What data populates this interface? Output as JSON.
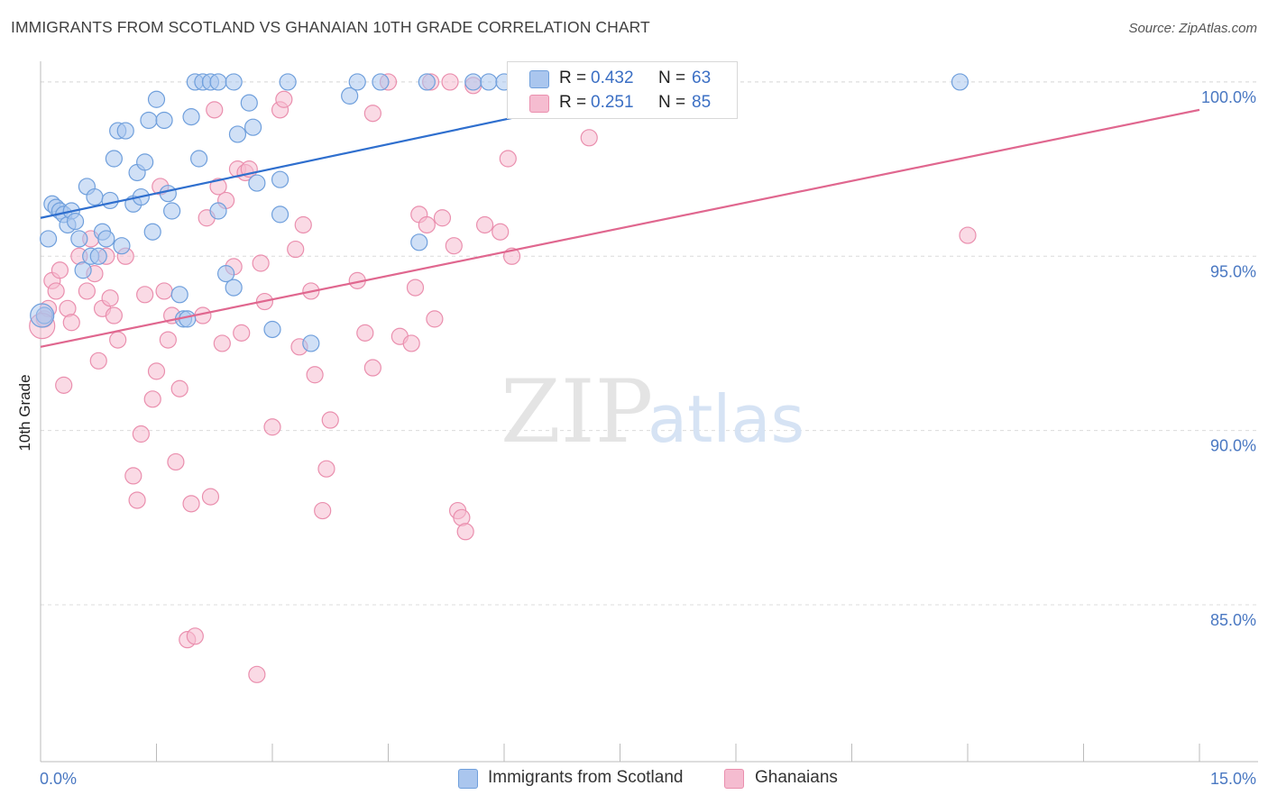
{
  "header": {
    "title": "IMMIGRANTS FROM SCOTLAND VS GHANAIAN 10TH GRADE CORRELATION CHART",
    "source": "Source: ZipAtlas.com"
  },
  "watermark": {
    "zip": "ZIP",
    "atlas": "atlas"
  },
  "legend_top": {
    "rows": [
      {
        "r_label": "R =",
        "r_value": "0.432",
        "n_label": "N =",
        "n_value": "63"
      },
      {
        "r_label": "R =",
        "r_value": "0.251",
        "n_label": "N =",
        "n_value": "85"
      }
    ]
  },
  "legend_bottom": {
    "items": [
      {
        "label": "Immigrants from Scotland"
      },
      {
        "label": "Ghanaians"
      }
    ]
  },
  "colors": {
    "series1_fill": "#aac6ee",
    "series1_stroke": "#6f9fdc",
    "series1_line": "#2f6fce",
    "series2_fill": "#f5bcd0",
    "series2_stroke": "#ea8fae",
    "series2_line": "#e0678f",
    "tick_label": "#4a78c2",
    "grid": "#dcdcdc"
  },
  "chart_data": {
    "type": "scatter",
    "title": "IMMIGRANTS FROM SCOTLAND VS GHANAIAN 10TH GRADE CORRELATION CHART",
    "xlabel": "",
    "ylabel": "10th Grade",
    "xlim": [
      0,
      15
    ],
    "ylim": [
      80.5,
      100.8
    ],
    "x_tick_labels": [
      "0.0%",
      "15.0%"
    ],
    "y_ticks": [
      85,
      90,
      95,
      100
    ],
    "y_tick_labels": [
      "85.0%",
      "90.0%",
      "95.0%",
      "100.0%"
    ],
    "grid": true,
    "legend_position": "bottom",
    "series": [
      {
        "name": "Immigrants from Scotland",
        "r": 0.432,
        "n": 63,
        "trend": {
          "x": [
            0,
            8.3
          ],
          "y": [
            96.1,
            100.0
          ]
        },
        "points": [
          [
            0.1,
            95.5
          ],
          [
            0.15,
            96.5
          ],
          [
            0.2,
            96.4
          ],
          [
            0.25,
            96.3
          ],
          [
            0.3,
            96.2
          ],
          [
            0.35,
            95.9
          ],
          [
            0.4,
            96.3
          ],
          [
            0.45,
            96.0
          ],
          [
            0.5,
            95.5
          ],
          [
            0.55,
            94.6
          ],
          [
            0.6,
            97.0
          ],
          [
            0.65,
            95.0
          ],
          [
            0.7,
            96.7
          ],
          [
            0.75,
            95.0
          ],
          [
            0.8,
            95.7
          ],
          [
            0.85,
            95.5
          ],
          [
            0.9,
            96.6
          ],
          [
            0.95,
            97.8
          ],
          [
            1.0,
            98.6
          ],
          [
            1.05,
            95.3
          ],
          [
            1.1,
            98.6
          ],
          [
            1.2,
            96.5
          ],
          [
            1.25,
            97.4
          ],
          [
            1.3,
            96.7
          ],
          [
            1.35,
            97.7
          ],
          [
            1.4,
            98.9
          ],
          [
            1.45,
            95.7
          ],
          [
            1.5,
            99.5
          ],
          [
            1.6,
            98.9
          ],
          [
            1.65,
            96.8
          ],
          [
            1.7,
            96.3
          ],
          [
            1.8,
            93.9
          ],
          [
            1.85,
            93.2
          ],
          [
            1.9,
            93.2
          ],
          [
            1.95,
            99.0
          ],
          [
            2.0,
            100.0
          ],
          [
            2.05,
            97.8
          ],
          [
            2.1,
            100.0
          ],
          [
            2.2,
            100.0
          ],
          [
            2.3,
            96.3
          ],
          [
            2.3,
            100.0
          ],
          [
            2.4,
            94.5
          ],
          [
            2.5,
            100.0
          ],
          [
            2.5,
            94.1
          ],
          [
            2.55,
            98.5
          ],
          [
            2.7,
            99.4
          ],
          [
            2.75,
            98.7
          ],
          [
            2.8,
            97.1
          ],
          [
            3.0,
            92.9
          ],
          [
            3.1,
            97.2
          ],
          [
            3.1,
            96.2
          ],
          [
            3.2,
            100.0
          ],
          [
            3.5,
            92.5
          ],
          [
            4.0,
            99.6
          ],
          [
            4.1,
            100.0
          ],
          [
            4.4,
            100.0
          ],
          [
            4.9,
            95.4
          ],
          [
            5.0,
            100.0
          ],
          [
            5.6,
            100.0
          ],
          [
            5.8,
            100.0
          ],
          [
            6.0,
            100.0
          ],
          [
            11.9,
            100.0
          ],
          [
            0.05,
            93.3
          ]
        ]
      },
      {
        "name": "Ghanaians",
        "r": 0.251,
        "n": 85,
        "trend": {
          "x": [
            0,
            15
          ],
          "y": [
            92.4,
            99.2
          ]
        },
        "points": [
          [
            0.05,
            93.2
          ],
          [
            0.1,
            93.5
          ],
          [
            0.15,
            94.3
          ],
          [
            0.2,
            94.0
          ],
          [
            0.25,
            94.6
          ],
          [
            0.3,
            91.3
          ],
          [
            0.35,
            93.5
          ],
          [
            0.4,
            93.1
          ],
          [
            0.5,
            95.0
          ],
          [
            0.6,
            94.0
          ],
          [
            0.65,
            95.5
          ],
          [
            0.7,
            94.5
          ],
          [
            0.75,
            92.0
          ],
          [
            0.8,
            93.5
          ],
          [
            0.85,
            95.0
          ],
          [
            0.9,
            93.8
          ],
          [
            0.95,
            93.3
          ],
          [
            1.0,
            92.6
          ],
          [
            1.1,
            95.0
          ],
          [
            1.2,
            88.7
          ],
          [
            1.25,
            88.0
          ],
          [
            1.3,
            89.9
          ],
          [
            1.35,
            93.9
          ],
          [
            1.45,
            90.9
          ],
          [
            1.5,
            91.7
          ],
          [
            1.55,
            97.0
          ],
          [
            1.6,
            94.0
          ],
          [
            1.65,
            92.6
          ],
          [
            1.7,
            93.3
          ],
          [
            1.75,
            89.1
          ],
          [
            1.8,
            91.2
          ],
          [
            1.9,
            84.0
          ],
          [
            1.95,
            87.9
          ],
          [
            2.0,
            84.1
          ],
          [
            2.1,
            93.3
          ],
          [
            2.15,
            96.1
          ],
          [
            2.2,
            88.1
          ],
          [
            2.25,
            99.2
          ],
          [
            2.3,
            97.0
          ],
          [
            2.35,
            92.5
          ],
          [
            2.4,
            96.6
          ],
          [
            2.5,
            94.7
          ],
          [
            2.55,
            97.5
          ],
          [
            2.6,
            92.8
          ],
          [
            2.65,
            97.4
          ],
          [
            2.7,
            97.5
          ],
          [
            2.8,
            83.0
          ],
          [
            2.85,
            94.8
          ],
          [
            2.9,
            93.7
          ],
          [
            3.0,
            90.1
          ],
          [
            3.1,
            99.2
          ],
          [
            3.15,
            99.5
          ],
          [
            3.3,
            95.2
          ],
          [
            3.35,
            92.4
          ],
          [
            3.4,
            95.9
          ],
          [
            3.5,
            94.0
          ],
          [
            3.55,
            91.6
          ],
          [
            3.65,
            87.7
          ],
          [
            3.7,
            88.9
          ],
          [
            3.75,
            90.3
          ],
          [
            4.1,
            94.3
          ],
          [
            4.2,
            92.8
          ],
          [
            4.3,
            91.8
          ],
          [
            4.3,
            99.1
          ],
          [
            4.5,
            100.0
          ],
          [
            4.65,
            92.7
          ],
          [
            4.8,
            92.5
          ],
          [
            4.85,
            94.1
          ],
          [
            4.9,
            96.2
          ],
          [
            5.0,
            95.9
          ],
          [
            5.05,
            100.0
          ],
          [
            5.1,
            93.2
          ],
          [
            5.2,
            96.1
          ],
          [
            5.3,
            100.0
          ],
          [
            5.35,
            95.3
          ],
          [
            5.4,
            87.7
          ],
          [
            5.45,
            87.5
          ],
          [
            5.5,
            87.1
          ],
          [
            5.6,
            99.9
          ],
          [
            5.75,
            95.9
          ],
          [
            5.95,
            95.7
          ],
          [
            6.05,
            97.8
          ],
          [
            6.1,
            95.0
          ],
          [
            7.1,
            98.4
          ],
          [
            12.0,
            95.6
          ]
        ]
      }
    ]
  }
}
